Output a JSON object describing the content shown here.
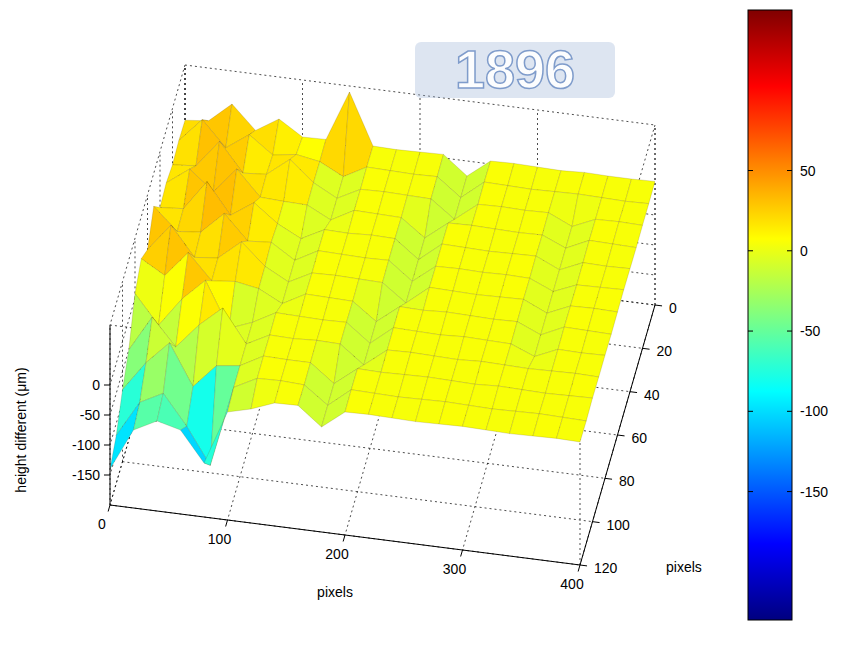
{
  "chart_data": {
    "type": "surface",
    "x_label": "pixels",
    "y_label": "pixels",
    "z_label": "height different (μm)",
    "watermark": "1896",
    "x": [
      0,
      20,
      40,
      60,
      80,
      100,
      120,
      140,
      160,
      180,
      200,
      220,
      240,
      260,
      280,
      300,
      320,
      340,
      360,
      380,
      400
    ],
    "y": [
      0,
      10,
      20,
      30,
      40,
      50,
      60,
      70,
      80,
      90,
      100,
      110,
      120
    ],
    "z": [
      [
        8,
        12,
        45,
        6,
        30,
        5,
        6,
        90,
        5,
        4,
        5,
        6,
        -25,
        5,
        6,
        5,
        4,
        6,
        5,
        5,
        6
      ],
      [
        10,
        50,
        8,
        35,
        6,
        12,
        5,
        -15,
        6,
        5,
        4,
        5,
        -25,
        6,
        5,
        4,
        5,
        6,
        5,
        4,
        5
      ],
      [
        6,
        9,
        55,
        7,
        10,
        40,
        6,
        -15,
        5,
        6,
        5,
        4,
        -25,
        5,
        6,
        5,
        6,
        -12,
        5,
        6,
        5
      ],
      [
        12,
        40,
        7,
        50,
        8,
        6,
        5,
        -15,
        6,
        5,
        4,
        -25,
        5,
        6,
        5,
        4,
        5,
        -12,
        6,
        5,
        4
      ],
      [
        7,
        10,
        60,
        9,
        35,
        5,
        -15,
        5,
        4,
        6,
        5,
        -25,
        6,
        5,
        4,
        5,
        6,
        -12,
        5,
        4,
        5
      ],
      [
        45,
        8,
        12,
        48,
        7,
        10,
        -15,
        6,
        5,
        4,
        5,
        -25,
        5,
        6,
        5,
        6,
        5,
        -12,
        4,
        5,
        6
      ],
      [
        9,
        55,
        6,
        10,
        42,
        6,
        -15,
        5,
        6,
        5,
        4,
        -25,
        6,
        5,
        4,
        5,
        6,
        -12,
        5,
        6,
        5
      ],
      [
        30,
        7,
        50,
        8,
        12,
        5,
        -15,
        6,
        5,
        4,
        -25,
        5,
        4,
        6,
        5,
        4,
        5,
        -12,
        6,
        5,
        4
      ],
      [
        8,
        -40,
        9,
        45,
        -30,
        -15,
        6,
        5,
        4,
        5,
        -25,
        6,
        5,
        4,
        6,
        5,
        4,
        -12,
        5,
        4,
        5
      ],
      [
        -50,
        10,
        -35,
        7,
        40,
        -15,
        5,
        4,
        6,
        5,
        -25,
        5,
        6,
        5,
        4,
        6,
        5,
        4,
        5,
        6,
        5
      ],
      [
        -80,
        -30,
        8,
        -60,
        -20,
        -15,
        6,
        5,
        5,
        -25,
        5,
        4,
        5,
        6,
        5,
        4,
        6,
        5,
        4,
        5,
        6
      ],
      [
        -120,
        -60,
        -40,
        -90,
        -150,
        -15,
        5,
        6,
        4,
        -25,
        6,
        5,
        4,
        5,
        6,
        5,
        4,
        5,
        6,
        5,
        4
      ],
      [
        -140,
        -70,
        -50,
        -60,
        -110,
        -20,
        -10,
        5,
        6,
        -25,
        5,
        6,
        5,
        4,
        5,
        6,
        5,
        4,
        5,
        6,
        5
      ]
    ],
    "xlim": [
      0,
      400
    ],
    "ylim": [
      0,
      120
    ],
    "zlim": [
      -200,
      100
    ],
    "xticks": [
      0,
      100,
      200,
      300,
      400
    ],
    "yticks": [
      0,
      20,
      40,
      60,
      80,
      100,
      120
    ],
    "zticks": [
      0,
      -50,
      -100,
      -150
    ],
    "grid": true,
    "colorbar": {
      "lim": [
        -230,
        150
      ],
      "ticks": [
        50,
        0,
        -50,
        -100,
        -150
      ]
    }
  }
}
